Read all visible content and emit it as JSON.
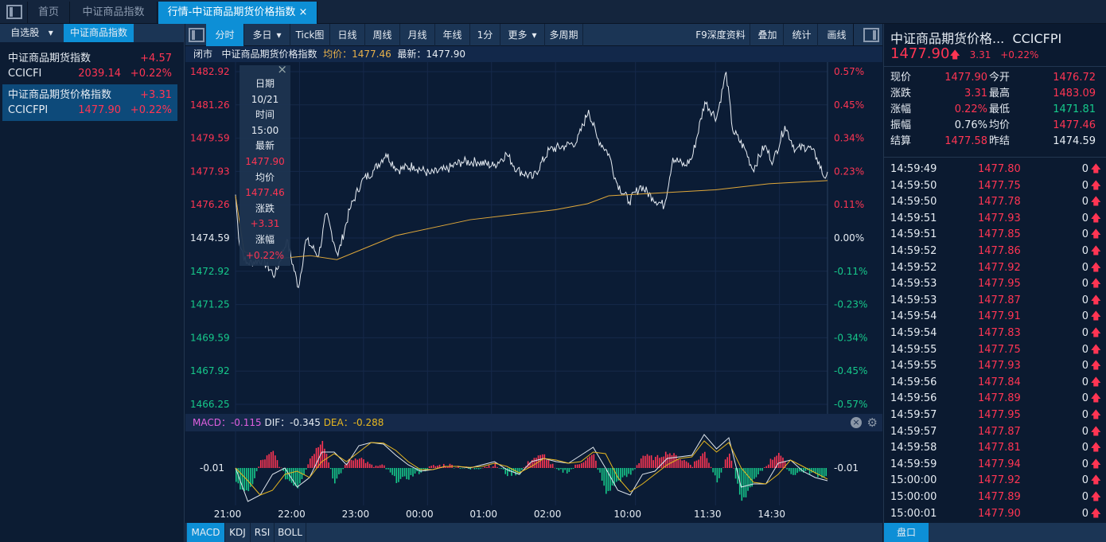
{
  "tabs": [
    {
      "label": "首页"
    },
    {
      "label": "中证商品指数"
    },
    {
      "label": "行情-中证商品期货价格指数",
      "close": "×"
    }
  ],
  "sidebar": {
    "dropdown": "自选股",
    "dropdown_arrow": "▾",
    "active_tab": "中证商品指数",
    "items": [
      {
        "name": "中证商品期货指数",
        "code": "CCICFI",
        "price": "2039.14",
        "change": "+4.57",
        "pct": "+0.22%"
      },
      {
        "name": "中证商品期货价格指数",
        "code": "CCICFPI",
        "price": "1477.90",
        "change": "+3.31",
        "pct": "+0.22%",
        "selected": true
      }
    ]
  },
  "toolbar": {
    "items": [
      "分时",
      "多日",
      "Tick图",
      "日线",
      "周线",
      "月线",
      "年线",
      "1分",
      "更多",
      "多周期"
    ],
    "active": "分时",
    "right": [
      "F9深度资料",
      "叠加",
      "统计",
      "画线"
    ],
    "arrow": "▾"
  },
  "status": {
    "state": "闭市",
    "name": "中证商品期货价格指数",
    "avg_label": "均价：1477.46",
    "last_label": "最新：1477.90"
  },
  "tooltip": {
    "close": "×",
    "rows": [
      [
        "日期",
        "10/21"
      ],
      [
        "时间",
        "15:00"
      ],
      [
        "最新",
        "1477.90"
      ],
      [
        "均价",
        "1477.46"
      ],
      [
        "涨跌",
        "+3.31"
      ],
      [
        "涨幅",
        "+0.22%"
      ]
    ]
  },
  "chart_data": {
    "type": "line",
    "y_left_ticks": [
      "1482.92",
      "1481.26",
      "1479.59",
      "1477.93",
      "1476.26",
      "1474.59",
      "1472.92",
      "1471.25",
      "1469.59",
      "1467.92",
      "1466.25"
    ],
    "y_right_ticks": [
      "0.57%",
      "0.45%",
      "0.34%",
      "0.23%",
      "0.11%",
      "0.00%",
      "-0.11%",
      "-0.23%",
      "-0.34%",
      "-0.45%",
      "-0.57%"
    ],
    "ylim": [
      1466.25,
      1482.92
    ],
    "prev_settle": 1474.59,
    "x_ticks": [
      "21:00",
      "22:00",
      "23:00",
      "00:00",
      "01:00",
      "02:00",
      "10:00",
      "11:30",
      "14:30"
    ],
    "x_tick_minutes": [
      0,
      60,
      120,
      180,
      240,
      300,
      375,
      450,
      510
    ],
    "total_minutes": 555,
    "price": [
      [
        0,
        1476.76
      ],
      [
        3,
        1474.55
      ],
      [
        10,
        1473.3
      ],
      [
        25,
        1473.5
      ],
      [
        37,
        1472.7
      ],
      [
        48,
        1474.5
      ],
      [
        59,
        1472.1
      ],
      [
        66,
        1474.5
      ],
      [
        78,
        1473.7
      ],
      [
        85,
        1475.8
      ],
      [
        96,
        1473.7
      ],
      [
        107,
        1476.0
      ],
      [
        118,
        1477.4
      ],
      [
        130,
        1478.0
      ],
      [
        141,
        1478.8
      ],
      [
        152,
        1478.0
      ],
      [
        167,
        1478.2
      ],
      [
        182,
        1477.8
      ],
      [
        197,
        1478.0
      ],
      [
        212,
        1478.4
      ],
      [
        227,
        1478.4
      ],
      [
        242,
        1478.2
      ],
      [
        254,
        1478.8
      ],
      [
        264,
        1478.0
      ],
      [
        279,
        1477.6
      ],
      [
        294,
        1479.0
      ],
      [
        309,
        1479.2
      ],
      [
        320,
        1479.4
      ],
      [
        331,
        1481.0
      ],
      [
        339,
        1479.6
      ],
      [
        350,
        1478.8
      ],
      [
        357,
        1477.4
      ],
      [
        369,
        1476.4
      ],
      [
        380,
        1477.2
      ],
      [
        391,
        1476.6
      ],
      [
        402,
        1476.2
      ],
      [
        410,
        1478.6
      ],
      [
        421,
        1478.2
      ],
      [
        428,
        1478.6
      ],
      [
        440,
        1481.4
      ],
      [
        451,
        1480.6
      ],
      [
        460,
        1482.9
      ],
      [
        466,
        1480.0
      ],
      [
        478,
        1479.0
      ],
      [
        485,
        1478.0
      ],
      [
        496,
        1479.2
      ],
      [
        504,
        1478.4
      ],
      [
        515,
        1480.2
      ],
      [
        525,
        1479.0
      ],
      [
        537,
        1479.2
      ],
      [
        545,
        1478.6
      ],
      [
        552,
        1477.6
      ],
      [
        555,
        1477.9
      ]
    ],
    "avg": [
      [
        0,
        1476.7
      ],
      [
        8,
        1473.9
      ],
      [
        30,
        1473.5
      ],
      [
        70,
        1473.7
      ],
      [
        95,
        1473.5
      ],
      [
        150,
        1474.7
      ],
      [
        220,
        1475.5
      ],
      [
        300,
        1476.0
      ],
      [
        330,
        1476.3
      ],
      [
        350,
        1476.7
      ],
      [
        450,
        1477.0
      ],
      [
        500,
        1477.3
      ],
      [
        555,
        1477.46
      ]
    ],
    "colors": {
      "price": "#e6ecf3",
      "avg": "#e0a83a",
      "up": "#ff3553",
      "down": "#16c98b"
    },
    "macd": {
      "label": "MACD：-0.115",
      "dif_label": "DIF：-0.345",
      "dea_label": "DEA：-0.288",
      "axis_label": "-0.01",
      "hist": [
        -0.5,
        -0.8,
        0.2,
        0.5,
        -0.3,
        -0.6,
        0.3,
        0.9,
        -0.5,
        0.2,
        0.35,
        0.05,
        0.05,
        -0.4,
        -0.3,
        -0.1,
        0.05,
        0.1,
        0.05,
        -0.05,
        0.05,
        0.1,
        -0.2,
        -0.15,
        0.3,
        0.4,
        -0.1,
        -0.1,
        0.2,
        0.4,
        -0.8,
        -0.4,
        -0.2,
        0.4,
        0.3,
        0.5,
        0.3,
        0.1,
        0.5,
        -0.4,
        0.5,
        -1.1,
        -0.4,
        0.1,
        0.5,
        -0.2,
        -0.1,
        -0.2,
        -0.3
      ],
      "dif": [
        0,
        -1.05,
        -0.85,
        -0.2,
        0,
        -0.6,
        -0.3,
        0.5,
        0.5,
        0.1,
        0.7,
        0.8,
        0.75,
        0.4,
        0.1,
        -0.1,
        -0.05,
        0.05,
        0.05,
        0,
        0.1,
        0.2,
        -0.05,
        -0.2,
        0.2,
        0.3,
        0.2,
        0.15,
        0.4,
        0.65,
        0,
        -0.7,
        -0.85,
        -0.2,
        -0.1,
        0.3,
        0.35,
        0.4,
        1.05,
        0.6,
        0.95,
        -0.6,
        -0.5,
        -0.5,
        0.15,
        0.25,
        -0.1,
        -0.3,
        -0.4
      ],
      "dea": [
        0,
        -0.4,
        -0.85,
        -0.7,
        -0.2,
        -0.1,
        -0.3,
        0.2,
        0.45,
        0.2,
        0.5,
        0.8,
        0.78,
        0.55,
        0.2,
        -0.05,
        -0.05,
        0.05,
        0.05,
        0.02,
        0.05,
        0.15,
        0.05,
        -0.15,
        0.05,
        0.3,
        0.25,
        0.15,
        0.2,
        0.5,
        0.45,
        -0.3,
        -0.75,
        -0.5,
        -0.2,
        0.1,
        0.3,
        0.35,
        0.85,
        0.5,
        0.8,
        0,
        -0.45,
        -0.5,
        -0.2,
        0.25,
        0.05,
        -0.15,
        -0.35
      ]
    }
  },
  "indicator_tabs": [
    "MACD",
    "KDJ",
    "RSI",
    "BOLL"
  ],
  "quote": {
    "title": "中证商品期货价格...",
    "code": "CCICFPI",
    "price": "1477.90",
    "arrow": "🡅",
    "change": "3.31",
    "pct": "+0.22%",
    "stats": [
      [
        "现价",
        "1477.90",
        "red",
        "今开",
        "1476.72",
        "red"
      ],
      [
        "涨跌",
        "3.31",
        "red",
        "最高",
        "1483.09",
        "red"
      ],
      [
        "涨幅",
        "0.22%",
        "red",
        "最低",
        "1471.81",
        "green"
      ],
      [
        "振幅",
        "0.76%",
        "white",
        "均价",
        "1477.46",
        "red"
      ],
      [
        "结算",
        "1477.58",
        "red",
        "昨结",
        "1474.59",
        "white"
      ]
    ],
    "ticks": [
      [
        "14:59:49",
        "1477.80",
        "0"
      ],
      [
        "14:59:50",
        "1477.75",
        "0"
      ],
      [
        "14:59:50",
        "1477.78",
        "0"
      ],
      [
        "14:59:51",
        "1477.93",
        "0"
      ],
      [
        "14:59:51",
        "1477.85",
        "0"
      ],
      [
        "14:59:52",
        "1477.86",
        "0"
      ],
      [
        "14:59:52",
        "1477.92",
        "0"
      ],
      [
        "14:59:53",
        "1477.95",
        "0"
      ],
      [
        "14:59:53",
        "1477.87",
        "0"
      ],
      [
        "14:59:54",
        "1477.91",
        "0"
      ],
      [
        "14:59:54",
        "1477.83",
        "0"
      ],
      [
        "14:59:55",
        "1477.75",
        "0"
      ],
      [
        "14:59:55",
        "1477.93",
        "0"
      ],
      [
        "14:59:56",
        "1477.84",
        "0"
      ],
      [
        "14:59:56",
        "1477.89",
        "0"
      ],
      [
        "14:59:57",
        "1477.95",
        "0"
      ],
      [
        "14:59:57",
        "1477.87",
        "0"
      ],
      [
        "14:59:58",
        "1477.81",
        "0"
      ],
      [
        "14:59:59",
        "1477.94",
        "0"
      ],
      [
        "15:00:00",
        "1477.92",
        "0"
      ],
      [
        "15:00:00",
        "1477.89",
        "0"
      ],
      [
        "15:00:01",
        "1477.90",
        "0"
      ]
    ],
    "tick_arrow": "🡅",
    "bottom_tab": "盘口"
  }
}
